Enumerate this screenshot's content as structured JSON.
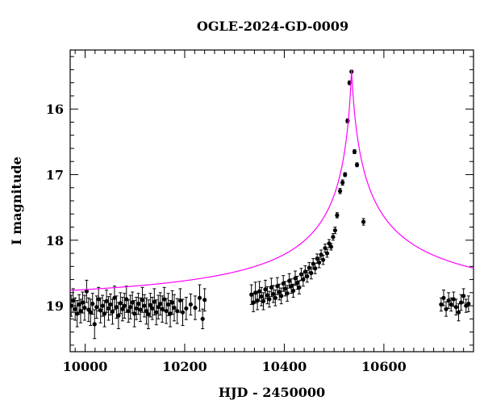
{
  "chart_data": {
    "type": "scatter",
    "title": "OGLE-2024-GD-0009",
    "xlabel": "HJD - 2450000",
    "ylabel": "I magnitude",
    "xlim": [
      9970,
      10780
    ],
    "ylim": [
      19.7,
      15.1
    ],
    "y_inverted": true,
    "xticks": [
      10000,
      10200,
      10400,
      10600
    ],
    "xtick_labels": [
      "10000",
      "10200",
      "10400",
      "10600"
    ],
    "yticks": [
      16,
      17,
      18,
      19
    ],
    "ytick_labels": [
      "16",
      "17",
      "18",
      "19"
    ],
    "grid": false,
    "colors": {
      "points": "#000000",
      "model": "#ff00ff",
      "axes": "#000000"
    },
    "model": {
      "name": "microlensing fit",
      "baseline_mag": 19.03,
      "t0": 10535,
      "peak_mag": 15.4,
      "tE_rise": 42,
      "tE_fall": 50
    },
    "series": [
      {
        "name": "observations",
        "x": [
          9972,
          9976,
          9980,
          9984,
          9988,
          9991,
          9995,
          9999,
          10003,
          10007,
          10011,
          10015,
          10019,
          10023,
          10027,
          10031,
          10035,
          10039,
          10043,
          10047,
          10051,
          10055,
          10059,
          10063,
          10067,
          10071,
          10075,
          10079,
          10083,
          10087,
          10091,
          10095,
          10099,
          10103,
          10107,
          10111,
          10115,
          10119,
          10123,
          10127,
          10131,
          10135,
          10139,
          10143,
          10147,
          10151,
          10155,
          10159,
          10163,
          10167,
          10171,
          10175,
          10179,
          10185,
          10191,
          10196,
          10203,
          10212,
          10221,
          10230,
          10236,
          10240,
          10334,
          10338,
          10342,
          10346,
          10350,
          10354,
          10358,
          10362,
          10366,
          10370,
          10374,
          10378,
          10382,
          10386,
          10390,
          10394,
          10398,
          10402,
          10406,
          10410,
          10414,
          10418,
          10422,
          10426,
          10430,
          10434,
          10438,
          10442,
          10446,
          10450,
          10454,
          10458,
          10462,
          10466,
          10470,
          10474,
          10478,
          10482,
          10486,
          10490,
          10494,
          10498,
          10502,
          10506,
          10512,
          10517,
          10522,
          10527,
          10531,
          10535,
          10541,
          10546,
          10559,
          10715,
          10720,
          10725,
          10730,
          10735,
          10740,
          10745,
          10750,
          10755,
          10760,
          10765,
          10770
        ],
        "y": [
          19.0,
          18.92,
          19.05,
          19.12,
          18.98,
          19.08,
          18.95,
          19.03,
          18.78,
          19.06,
          19.1,
          18.97,
          19.28,
          19.02,
          18.9,
          19.07,
          19.0,
          19.12,
          18.93,
          19.04,
          18.98,
          19.09,
          18.88,
          19.02,
          19.15,
          18.96,
          19.05,
          19.0,
          18.9,
          19.08,
          19.02,
          18.95,
          19.12,
          19.04,
          18.97,
          19.06,
          18.91,
          19.0,
          19.08,
          19.13,
          18.99,
          19.04,
          18.94,
          19.1,
          19.02,
          18.97,
          19.05,
          18.9,
          19.08,
          18.98,
          19.12,
          18.95,
          19.03,
          19.08,
          18.92,
          19.1,
          19.04,
          18.98,
          19.03,
          18.88,
          19.2,
          18.91,
          18.83,
          18.95,
          18.8,
          18.92,
          18.78,
          18.86,
          18.93,
          18.75,
          18.84,
          18.9,
          18.72,
          18.82,
          18.88,
          18.7,
          18.79,
          18.85,
          18.66,
          18.74,
          18.81,
          18.62,
          18.7,
          18.77,
          18.58,
          18.65,
          18.72,
          18.52,
          18.6,
          18.48,
          18.55,
          18.42,
          18.5,
          18.36,
          18.43,
          18.28,
          18.34,
          18.22,
          18.3,
          18.12,
          18.2,
          18.05,
          18.1,
          17.95,
          17.85,
          17.62,
          17.25,
          17.12,
          17.0,
          16.18,
          15.6,
          15.43,
          16.65,
          16.85,
          17.72,
          18.98,
          18.88,
          19.05,
          18.92,
          18.98,
          18.9,
          19.02,
          19.1,
          18.95,
          18.85,
          19.0,
          18.97
        ],
        "yerr": [
          0.16,
          0.18,
          0.17,
          0.2,
          0.15,
          0.18,
          0.16,
          0.19,
          0.17,
          0.18,
          0.2,
          0.16,
          0.22,
          0.17,
          0.18,
          0.19,
          0.16,
          0.2,
          0.17,
          0.18,
          0.16,
          0.19,
          0.18,
          0.17,
          0.2,
          0.16,
          0.18,
          0.19,
          0.2,
          0.17,
          0.18,
          0.16,
          0.2,
          0.17,
          0.16,
          0.18,
          0.19,
          0.17,
          0.2,
          0.22,
          0.18,
          0.17,
          0.2,
          0.19,
          0.18,
          0.17,
          0.2,
          0.18,
          0.19,
          0.17,
          0.2,
          0.18,
          0.2,
          0.19,
          0.18,
          0.2,
          0.17,
          0.16,
          0.18,
          0.2,
          0.15,
          0.17,
          0.15,
          0.14,
          0.16,
          0.14,
          0.15,
          0.14,
          0.13,
          0.14,
          0.13,
          0.12,
          0.14,
          0.13,
          0.12,
          0.13,
          0.12,
          0.12,
          0.12,
          0.11,
          0.12,
          0.11,
          0.11,
          0.1,
          0.11,
          0.1,
          0.1,
          0.09,
          0.1,
          0.09,
          0.09,
          0.08,
          0.09,
          0.08,
          0.08,
          0.07,
          0.08,
          0.07,
          0.07,
          0.06,
          0.06,
          0.06,
          0.05,
          0.05,
          0.05,
          0.04,
          0.04,
          0.04,
          0.03,
          0.03,
          0.03,
          0.02,
          0.03,
          0.03,
          0.05,
          0.1,
          0.12,
          0.11,
          0.12,
          0.1,
          0.11,
          0.12,
          0.13,
          0.12,
          0.11,
          0.1,
          0.12
        ]
      }
    ]
  }
}
